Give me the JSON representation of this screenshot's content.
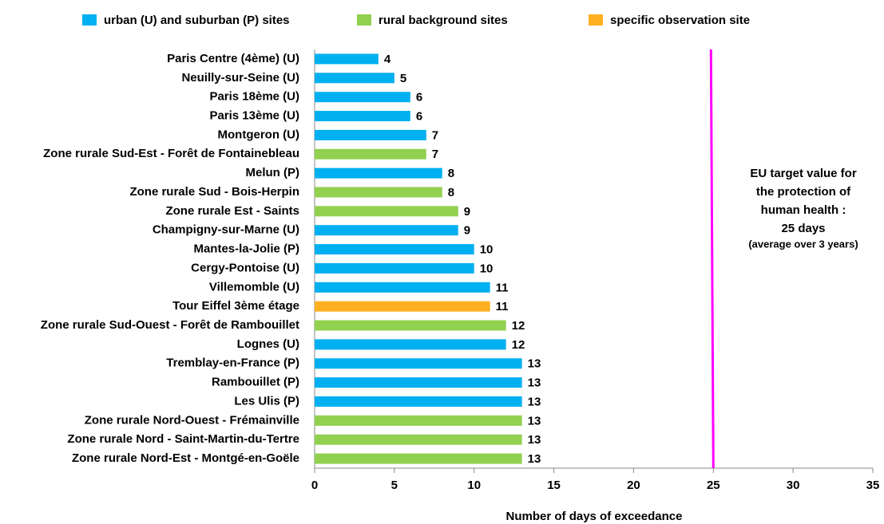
{
  "chart_data": {
    "type": "barh",
    "x_label": "Number of days of exceedance",
    "categories": [
      "Paris Centre (4ème) (U)",
      "Neuilly-sur-Seine (U)",
      "Paris 18ème (U)",
      "Paris 13ème (U)",
      "Montgeron (U)",
      "Zone rurale Sud-Est - Forêt de Fontainebleau",
      "Melun (P)",
      "Zone rurale Sud - Bois-Herpin",
      "Zone rurale Est - Saints",
      "Champigny-sur-Marne (U)",
      "Mantes-la-Jolie (P)",
      "Cergy-Pontoise (U)",
      "Villemomble (U)",
      "Tour Eiffel 3ème étage",
      "Zone rurale Sud-Ouest - Forêt de Rambouillet",
      "Lognes (U)",
      "Tremblay-en-France (P)",
      "Rambouillet (P)",
      "Les Ulis (P)",
      "Zone rurale Nord-Ouest - Frémainville",
      "Zone rurale Nord - Saint-Martin-du-Tertre",
      "Zone rurale Nord-Est - Montgé-en-Goële"
    ],
    "series": [
      {
        "name": "urban (U) and suburban (P) sites",
        "color": "#00b0f0",
        "values": [
          4,
          5,
          6,
          6,
          7,
          null,
          8,
          null,
          null,
          9,
          10,
          10,
          11,
          null,
          null,
          12,
          13,
          13,
          13,
          null,
          null,
          null
        ]
      },
      {
        "name": "rural background sites",
        "color": "#92d050",
        "values": [
          null,
          null,
          null,
          null,
          null,
          7,
          null,
          8,
          9,
          null,
          null,
          null,
          null,
          null,
          12,
          null,
          null,
          null,
          null,
          13,
          13,
          13
        ]
      },
      {
        "name": "specific observation site",
        "color": "#ffb020",
        "values": [
          null,
          null,
          null,
          null,
          null,
          null,
          null,
          null,
          null,
          null,
          null,
          null,
          null,
          11,
          null,
          null,
          null,
          null,
          null,
          null,
          null,
          null
        ]
      }
    ],
    "xlim": [
      0,
      35
    ],
    "xticks": [
      0,
      5,
      10,
      15,
      20,
      25,
      30,
      35
    ],
    "reference_line": {
      "value": 25,
      "color": "#ff00ff",
      "label": [
        "EU target value for",
        "the protection of",
        "human health :",
        "25 days",
        "(average over 3 years)"
      ]
    }
  }
}
